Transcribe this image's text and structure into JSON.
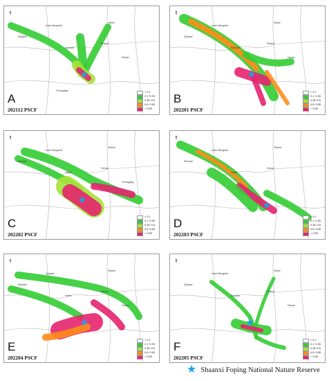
{
  "panels": [
    {
      "letter": "A",
      "code": "202112 PSCF",
      "labels": [
        "Inner Mongolia",
        "Qinghai",
        "Sichuan",
        "Hebei",
        "Shanxi",
        "Henan",
        "Chongqing"
      ]
    },
    {
      "letter": "B",
      "code": "202201 PSCF",
      "labels": [
        "Inner Mongolia",
        "Qinghai",
        "Sichuan",
        "Hebei",
        "Shanxi",
        "Henan"
      ]
    },
    {
      "letter": "C",
      "code": "202202 PSCF",
      "labels": [
        "Inner Mongolia",
        "Sichuan",
        "Hebei",
        "Shanxi",
        "Henan",
        "Chongqing"
      ]
    },
    {
      "letter": "D",
      "code": "202203 PSCF",
      "labels": [
        "Inner Mongolia",
        "Sichuan",
        "Hebei",
        "Shanxi",
        "Henan"
      ]
    },
    {
      "letter": "E",
      "code": "202204 PSCF",
      "labels": [
        "Qinghai",
        "Sichuan",
        "Hebei",
        "Shanxi",
        "Henan",
        "Gansu"
      ]
    },
    {
      "letter": "F",
      "code": "202205 PSCF",
      "labels": [
        "Inner Mongolia",
        "Qinghai",
        "Sichuan",
        "Hebei",
        "Shanxi",
        "Henan"
      ]
    }
  ],
  "legend": [
    {
      "label": "< 0.1",
      "color": "#ffffff"
    },
    {
      "label": "0.1~0.35",
      "color": "#33cc33"
    },
    {
      "label": "0.35~0.6",
      "color": "#a6e23a"
    },
    {
      "label": "0.6~0.85",
      "color": "#ff8c1a"
    },
    {
      "label": "> 0.85",
      "color": "#e6246e"
    }
  ],
  "footer": {
    "star_icon": "star-icon",
    "text": "Shaanxi Foping National Nature Reserve"
  }
}
